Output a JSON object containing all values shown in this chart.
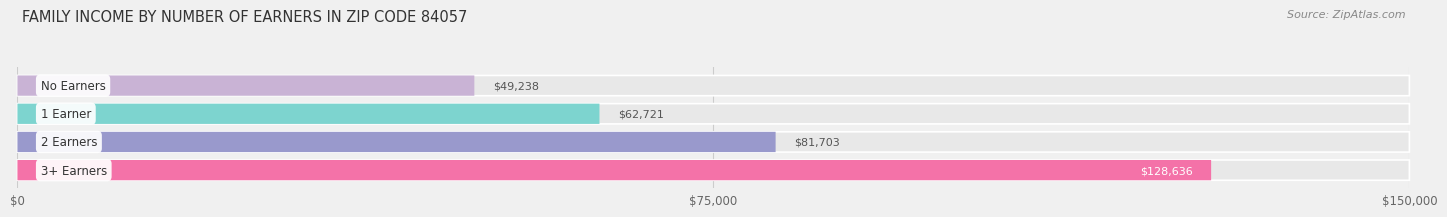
{
  "title": "FAMILY INCOME BY NUMBER OF EARNERS IN ZIP CODE 84057",
  "source": "Source: ZipAtlas.com",
  "categories": [
    "No Earners",
    "1 Earner",
    "2 Earners",
    "3+ Earners"
  ],
  "values": [
    49238,
    62721,
    81703,
    128636
  ],
  "bar_colors": [
    "#c9b3d5",
    "#7dd4cf",
    "#9999cc",
    "#f472a8"
  ],
  "bar_height": 0.72,
  "xlim": [
    0,
    150000
  ],
  "xticks": [
    0,
    75000,
    150000
  ],
  "xtick_labels": [
    "$0",
    "$75,000",
    "$150,000"
  ],
  "bg_color": "#f0f0f0",
  "bar_bg_color": "#e8e8e8",
  "title_fontsize": 10.5,
  "source_fontsize": 8,
  "label_fontsize": 8.5,
  "value_fontsize": 8,
  "tick_fontsize": 8.5,
  "value_color_inside": "white",
  "value_color_outside": "#555555",
  "label_text_color": "#333333",
  "grid_color": "#cccccc"
}
